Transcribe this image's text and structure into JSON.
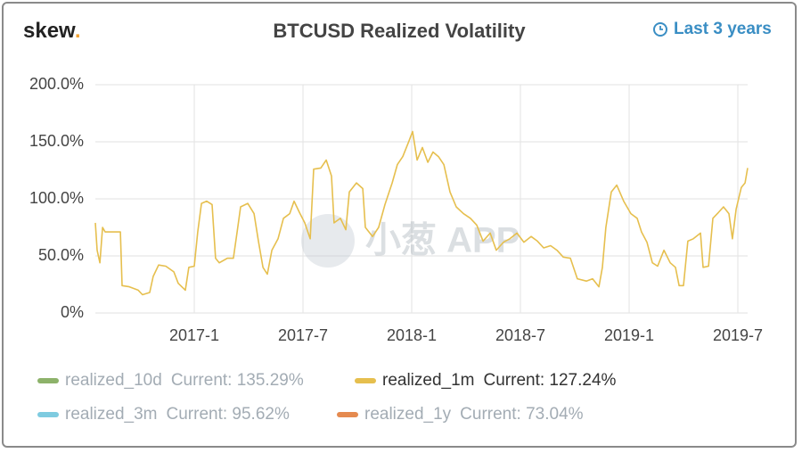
{
  "chart_data": {
    "type": "line",
    "logo": {
      "text": "skew",
      "dot": "."
    },
    "title": "BTCUSD Realized Volatility",
    "range_button": "Last 3 years",
    "watermark": "小葱 APP",
    "xlim": [
      2016.545,
      2019.545
    ],
    "xticks": [
      {
        "value": 2017.0,
        "label": "2017-1"
      },
      {
        "value": 2017.5,
        "label": "2017-7"
      },
      {
        "value": 2018.0,
        "label": "2018-1"
      },
      {
        "value": 2018.5,
        "label": "2018-7"
      },
      {
        "value": 2019.0,
        "label": "2019-1"
      },
      {
        "value": 2019.5,
        "label": "2019-7"
      }
    ],
    "ylim": [
      0,
      200
    ],
    "yticks": [
      {
        "value": 0,
        "label": "0%"
      },
      {
        "value": 50,
        "label": "50.0%"
      },
      {
        "value": 100,
        "label": "100.0%"
      },
      {
        "value": 150,
        "label": "150.0%"
      },
      {
        "value": 200,
        "label": "200.0%"
      }
    ],
    "grid": true,
    "x": [
      2016.545,
      2016.553,
      2016.566,
      2016.578,
      2016.59,
      2016.619,
      2016.66,
      2016.668,
      2016.701,
      2016.742,
      2016.762,
      2016.795,
      2016.811,
      2016.836,
      2016.869,
      2016.906,
      2016.926,
      2016.959,
      2016.975,
      2017.0,
      2017.016,
      2017.033,
      2017.057,
      2017.082,
      2017.098,
      2017.115,
      2017.152,
      2017.18,
      2017.197,
      2017.213,
      2017.246,
      2017.275,
      2017.295,
      2017.316,
      2017.336,
      2017.357,
      2017.385,
      2017.41,
      2017.439,
      2017.459,
      2017.484,
      2017.508,
      2017.533,
      2017.549,
      2017.582,
      2017.607,
      2017.631,
      2017.643,
      2017.672,
      2017.697,
      2017.713,
      2017.746,
      2017.775,
      2017.787,
      2017.82,
      2017.848,
      2017.877,
      2017.91,
      2017.934,
      2017.959,
      2017.984,
      2018.004,
      2018.025,
      2018.049,
      2018.074,
      2018.098,
      2018.123,
      2018.148,
      2018.176,
      2018.205,
      2018.238,
      2018.27,
      2018.299,
      2018.328,
      2018.361,
      2018.389,
      2018.422,
      2018.451,
      2018.484,
      2018.516,
      2018.549,
      2018.578,
      2018.607,
      2018.639,
      2018.668,
      2018.697,
      2018.73,
      2018.762,
      2018.803,
      2018.832,
      2018.861,
      2018.877,
      2018.893,
      2018.918,
      2018.943,
      2018.975,
      2019.008,
      2019.037,
      2019.057,
      2019.082,
      2019.107,
      2019.131,
      2019.16,
      2019.189,
      2019.213,
      2019.23,
      2019.25,
      2019.27,
      2019.295,
      2019.328,
      2019.34,
      2019.365,
      2019.385,
      2019.41,
      2019.434,
      2019.459,
      2019.475,
      2019.492,
      2019.516,
      2019.533,
      2019.545
    ],
    "series": [
      {
        "name": "realized_10d",
        "color": "#8db26a",
        "current": "Current: 135.29%",
        "visible": false
      },
      {
        "name": "realized_1m",
        "color": "#e6bf4e",
        "current": "Current: 127.24%",
        "visible": true,
        "values": [
          79,
          55,
          44,
          75,
          71,
          71,
          71,
          24,
          23,
          20,
          16,
          18,
          32,
          42,
          41,
          36,
          26,
          20,
          40,
          41,
          71,
          96,
          98,
          95,
          48,
          44,
          48,
          48,
          71,
          93,
          96,
          87,
          63,
          40,
          34,
          55,
          65,
          83,
          87,
          98,
          88,
          79,
          65,
          126,
          127,
          134,
          120,
          79,
          83,
          73,
          106,
          114,
          109,
          75,
          67,
          75,
          95,
          114,
          130,
          137,
          149,
          159,
          134,
          145,
          132,
          141,
          137,
          130,
          106,
          93,
          87,
          83,
          77,
          63,
          70,
          55,
          62,
          65,
          70,
          62,
          67,
          63,
          57,
          59,
          55,
          49,
          48,
          30,
          28,
          30,
          23,
          40,
          75,
          106,
          112,
          98,
          87,
          83,
          71,
          62,
          44,
          41,
          55,
          44,
          40,
          24,
          24,
          63,
          65,
          70,
          40,
          41,
          83,
          88,
          93,
          87,
          65,
          91,
          110,
          114,
          127
        ]
      },
      {
        "name": "realized_3m",
        "color": "#7ecbe0",
        "current": "Current: 95.62%",
        "visible": false
      },
      {
        "name": "realized_1y",
        "color": "#e58a4f",
        "current": "Current: 73.04%",
        "visible": false
      }
    ]
  }
}
